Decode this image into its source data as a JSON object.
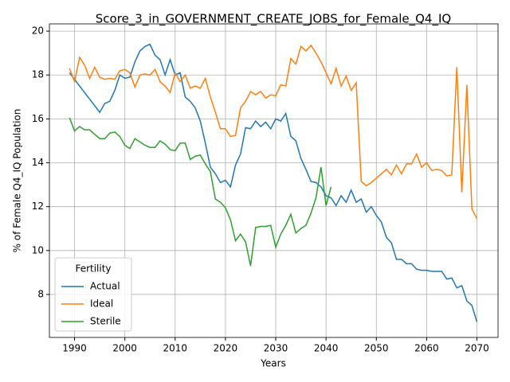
{
  "chart_data": {
    "type": "line",
    "title": "Score_3_in_GOVERNMENT_CREATE_JOBS_for_Female_Q4_IQ",
    "x_label": "Years",
    "y_label": "% of Female Q4_IQ Population",
    "legend_title": "Fertility",
    "legend_position": "lower left",
    "grid": true,
    "xlim": [
      1985,
      2074.2
    ],
    "ylim": [
      6.04,
      20.33
    ],
    "xticks": [
      1990,
      2000,
      2010,
      2020,
      2030,
      2040,
      2050,
      2060,
      2070
    ],
    "yticks": [
      8,
      10,
      12,
      14,
      16,
      18,
      20
    ],
    "x": [
      1989,
      1990,
      1991,
      1992,
      1993,
      1994,
      1995,
      1996,
      1997,
      1998,
      1999,
      2000,
      2001,
      2002,
      2003,
      2004,
      2005,
      2006,
      2007,
      2008,
      2009,
      2010,
      2011,
      2012,
      2013,
      2014,
      2015,
      2016,
      2017,
      2018,
      2019,
      2020,
      2021,
      2022,
      2023,
      2024,
      2025,
      2026,
      2027,
      2028,
      2029,
      2030,
      2031,
      2032,
      2033,
      2034,
      2035,
      2036,
      2037,
      2038,
      2039,
      2040,
      2041,
      2042,
      2043,
      2044,
      2045,
      2046,
      2047,
      2048,
      2049,
      2050,
      2051,
      2052,
      2053,
      2054,
      2055,
      2056,
      2057,
      2058,
      2059,
      2060,
      2061,
      2062,
      2063,
      2064,
      2065,
      2066,
      2067,
      2068,
      2069,
      2070
    ],
    "series": [
      {
        "name": "Actual",
        "color": "#1f77b4",
        "values": [
          18.1,
          17.8,
          17.5,
          17.2,
          16.9,
          16.6,
          16.3,
          16.7,
          16.8,
          17.3,
          18.0,
          17.85,
          17.9,
          18.6,
          19.1,
          19.3,
          19.4,
          18.9,
          18.7,
          18.0,
          18.7,
          18.0,
          18.1,
          17.0,
          16.8,
          16.5,
          15.9,
          14.9,
          13.8,
          13.5,
          13.1,
          13.2,
          12.9,
          13.9,
          14.4,
          15.6,
          15.55,
          15.9,
          15.65,
          15.85,
          15.55,
          16.0,
          15.9,
          16.25,
          15.2,
          15.0,
          14.2,
          13.7,
          13.15,
          13.1,
          12.9,
          12.5,
          12.4,
          12.05,
          12.5,
          12.2,
          12.75,
          12.2,
          12.35,
          11.75,
          12.0,
          11.6,
          11.3,
          10.6,
          10.35,
          9.6,
          9.6,
          9.4,
          9.4,
          9.15,
          9.1,
          9.1,
          9.05,
          9.05,
          9.05,
          8.7,
          8.75,
          8.3,
          8.4,
          7.7,
          7.5,
          6.75
        ]
      },
      {
        "name": "Ideal",
        "color": "#ff7f0e",
        "values": [
          18.3,
          17.7,
          18.8,
          18.45,
          17.85,
          18.35,
          17.9,
          17.8,
          17.85,
          17.8,
          18.2,
          18.25,
          18.1,
          17.45,
          18.0,
          18.05,
          18.0,
          18.25,
          17.7,
          17.5,
          17.2,
          18.1,
          17.7,
          18.0,
          17.4,
          17.5,
          17.4,
          17.85,
          17.0,
          16.3,
          15.55,
          15.55,
          15.2,
          15.25,
          16.5,
          16.8,
          17.25,
          17.1,
          17.25,
          16.95,
          17.1,
          17.05,
          17.55,
          17.5,
          18.75,
          18.5,
          19.3,
          19.1,
          19.35,
          19.0,
          18.6,
          18.1,
          17.6,
          18.3,
          17.5,
          17.95,
          17.3,
          17.65,
          13.15,
          12.95,
          13.1,
          13.3,
          13.5,
          13.7,
          13.45,
          13.9,
          13.5,
          13.95,
          13.95,
          14.4,
          13.8,
          14.0,
          13.65,
          13.7,
          13.65,
          13.4,
          13.45,
          18.35,
          12.65,
          17.55,
          11.9,
          11.45
        ]
      },
      {
        "name": "Sterile",
        "color": "#2ca02c",
        "values": [
          16.05,
          15.45,
          15.65,
          15.5,
          15.5,
          15.3,
          15.1,
          15.1,
          15.35,
          15.4,
          15.2,
          14.8,
          14.65,
          15.1,
          14.95,
          14.8,
          14.7,
          14.7,
          15.0,
          14.85,
          14.6,
          14.55,
          14.9,
          14.9,
          14.15,
          14.3,
          14.35,
          13.95,
          13.6,
          12.35,
          12.2,
          11.95,
          11.4,
          10.45,
          10.75,
          10.4,
          9.3,
          11.05,
          11.1,
          11.1,
          11.15,
          10.15,
          10.75,
          11.15,
          11.65,
          10.8,
          11.0,
          11.15,
          11.7,
          12.4,
          13.8,
          12.05,
          12.9,
          null,
          null,
          null,
          null,
          null,
          null,
          null,
          null,
          null,
          null,
          null,
          null,
          null,
          null,
          null,
          null,
          null,
          null,
          null,
          null,
          null,
          null,
          null,
          null,
          null,
          null,
          null,
          null,
          null
        ]
      }
    ]
  }
}
